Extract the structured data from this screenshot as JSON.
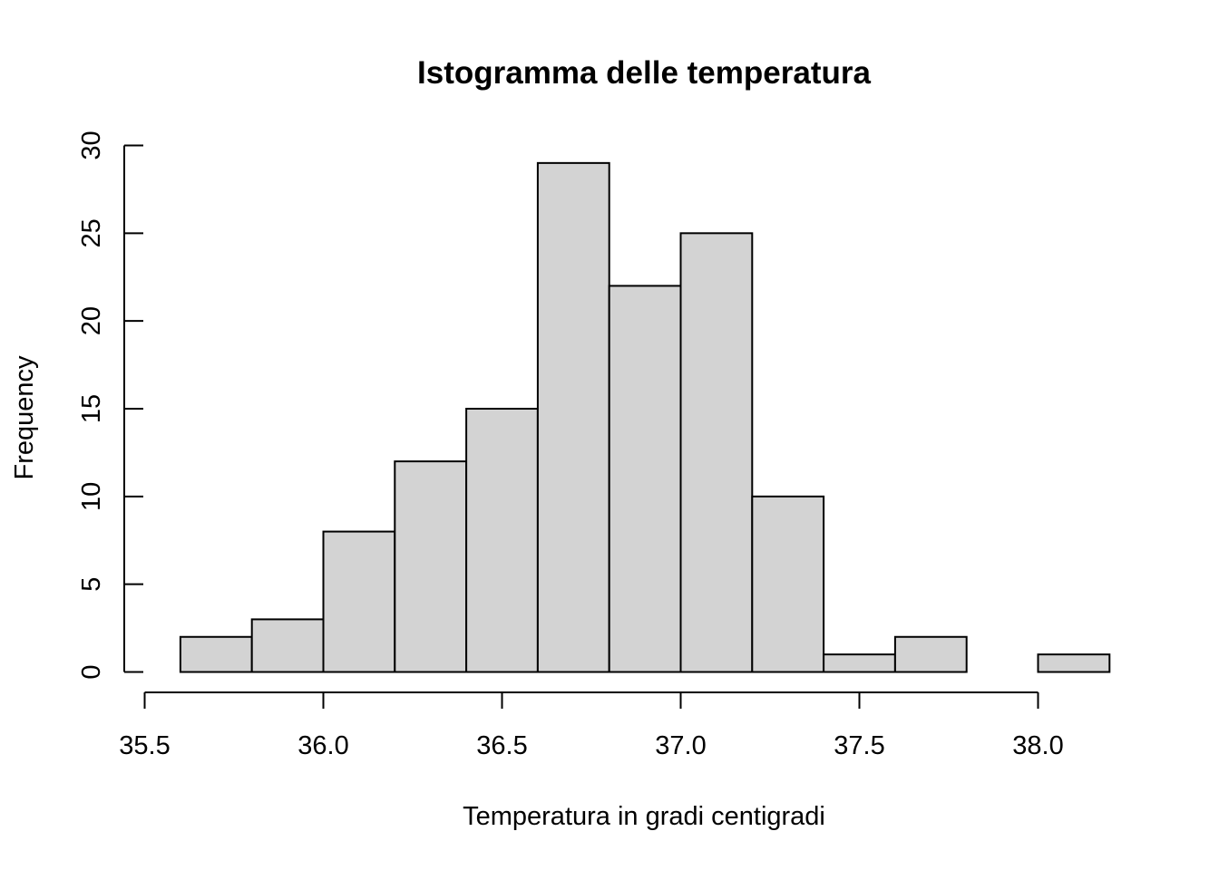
{
  "chart_data": {
    "type": "bar",
    "subtype": "histogram",
    "title": "Istogramma delle temperatura",
    "xlabel": "Temperatura in gradi centigradi",
    "ylabel": "Frequency",
    "bins": [
      {
        "start": 35.6,
        "end": 35.8,
        "count": 2
      },
      {
        "start": 35.8,
        "end": 36.0,
        "count": 3
      },
      {
        "start": 36.0,
        "end": 36.2,
        "count": 8
      },
      {
        "start": 36.2,
        "end": 36.4,
        "count": 12
      },
      {
        "start": 36.4,
        "end": 36.6,
        "count": 15
      },
      {
        "start": 36.6,
        "end": 36.8,
        "count": 29
      },
      {
        "start": 36.8,
        "end": 37.0,
        "count": 22
      },
      {
        "start": 37.0,
        "end": 37.2,
        "count": 25
      },
      {
        "start": 37.2,
        "end": 37.4,
        "count": 10
      },
      {
        "start": 37.4,
        "end": 37.6,
        "count": 1
      },
      {
        "start": 37.6,
        "end": 37.8,
        "count": 2
      },
      {
        "start": 37.8,
        "end": 38.0,
        "count": 0
      },
      {
        "start": 38.0,
        "end": 38.2,
        "count": 1
      }
    ],
    "x_ticks": [
      "35.5",
      "36.0",
      "36.5",
      "37.0",
      "37.5",
      "38.0"
    ],
    "y_ticks": [
      "0",
      "5",
      "10",
      "15",
      "20",
      "25",
      "30"
    ],
    "xlim": [
      35.5,
      38.0
    ],
    "ylim": [
      0,
      30
    ],
    "bar_fill": "#d3d3d3",
    "bar_stroke": "#000000",
    "grid": false,
    "legend": "none"
  }
}
